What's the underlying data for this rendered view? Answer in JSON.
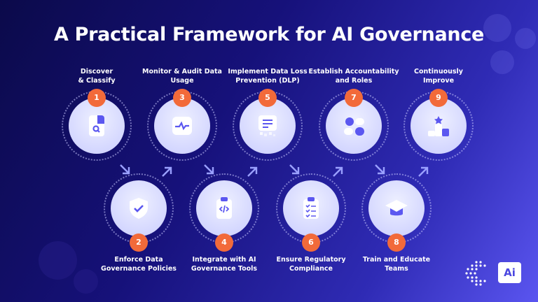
{
  "title": "A Practical Framework for AI Governance",
  "steps": [
    {
      "number": "1",
      "label": "Discover\n& Classify",
      "icon": "document-search-icon",
      "row": "top"
    },
    {
      "number": "2",
      "label": "Enforce Data\nGovernance Policies",
      "icon": "shield-check-icon",
      "row": "bottom"
    },
    {
      "number": "3",
      "label": "Monitor & Audit Data\nUsage",
      "icon": "activity-monitor-icon",
      "row": "top"
    },
    {
      "number": "4",
      "label": "Integrate with AI\nGovernance Tools",
      "icon": "code-clipboard-icon",
      "row": "bottom"
    },
    {
      "number": "5",
      "label": "Implement Data Loss\nPrevention (DLP)",
      "icon": "data-loss-icon",
      "row": "top"
    },
    {
      "number": "6",
      "label": "Ensure Regulatory\nCompliance",
      "icon": "checklist-icon",
      "row": "bottom"
    },
    {
      "number": "7",
      "label": "Establish Accountability\nand Roles",
      "icon": "users-roles-icon",
      "row": "top"
    },
    {
      "number": "8",
      "label": "Train and Educate\nTeams",
      "icon": "graduation-cap-icon",
      "row": "bottom"
    },
    {
      "number": "9",
      "label": "Continuously\nImprove",
      "icon": "podium-star-icon",
      "row": "top"
    }
  ],
  "logo": {
    "text": "Ai"
  },
  "colors": {
    "accent": "#f26a3a",
    "icon": "#5b57f0",
    "background": "#16117a"
  }
}
